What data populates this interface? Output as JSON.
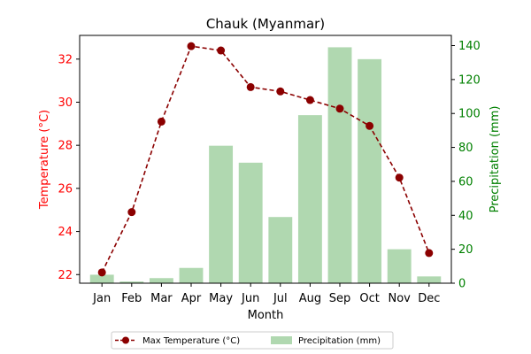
{
  "chart_data": {
    "type": "bar+line",
    "title": "Chauk (Myanmar)",
    "xlabel": "Month",
    "categories": [
      "Jan",
      "Feb",
      "Mar",
      "Apr",
      "May",
      "Jun",
      "Jul",
      "Aug",
      "Sep",
      "Oct",
      "Nov",
      "Dec"
    ],
    "temperature": {
      "name": "Max Temperature (°C)",
      "axis_label": "Temperature (°C)",
      "color": "#8b0000",
      "axis_color": "#ff0000",
      "ylim": [
        21.6,
        33.1
      ],
      "ticks": [
        22,
        24,
        26,
        28,
        30,
        32
      ],
      "values": [
        22.1,
        24.9,
        29.1,
        32.6,
        32.4,
        30.7,
        30.5,
        30.1,
        29.7,
        28.9,
        26.5,
        23.0
      ]
    },
    "precipitation": {
      "name": "Precipitation (mm)",
      "axis_label": "Precipitation (mm)",
      "color": "#b0d8b0",
      "axis_color": "#008000",
      "ylim": [
        0,
        146
      ],
      "ticks": [
        0,
        20,
        40,
        60,
        80,
        100,
        120,
        140
      ],
      "values": [
        5,
        1,
        3,
        9,
        81,
        71,
        39,
        99,
        139,
        132,
        20,
        4
      ]
    },
    "legend_position": "bottom-center"
  }
}
